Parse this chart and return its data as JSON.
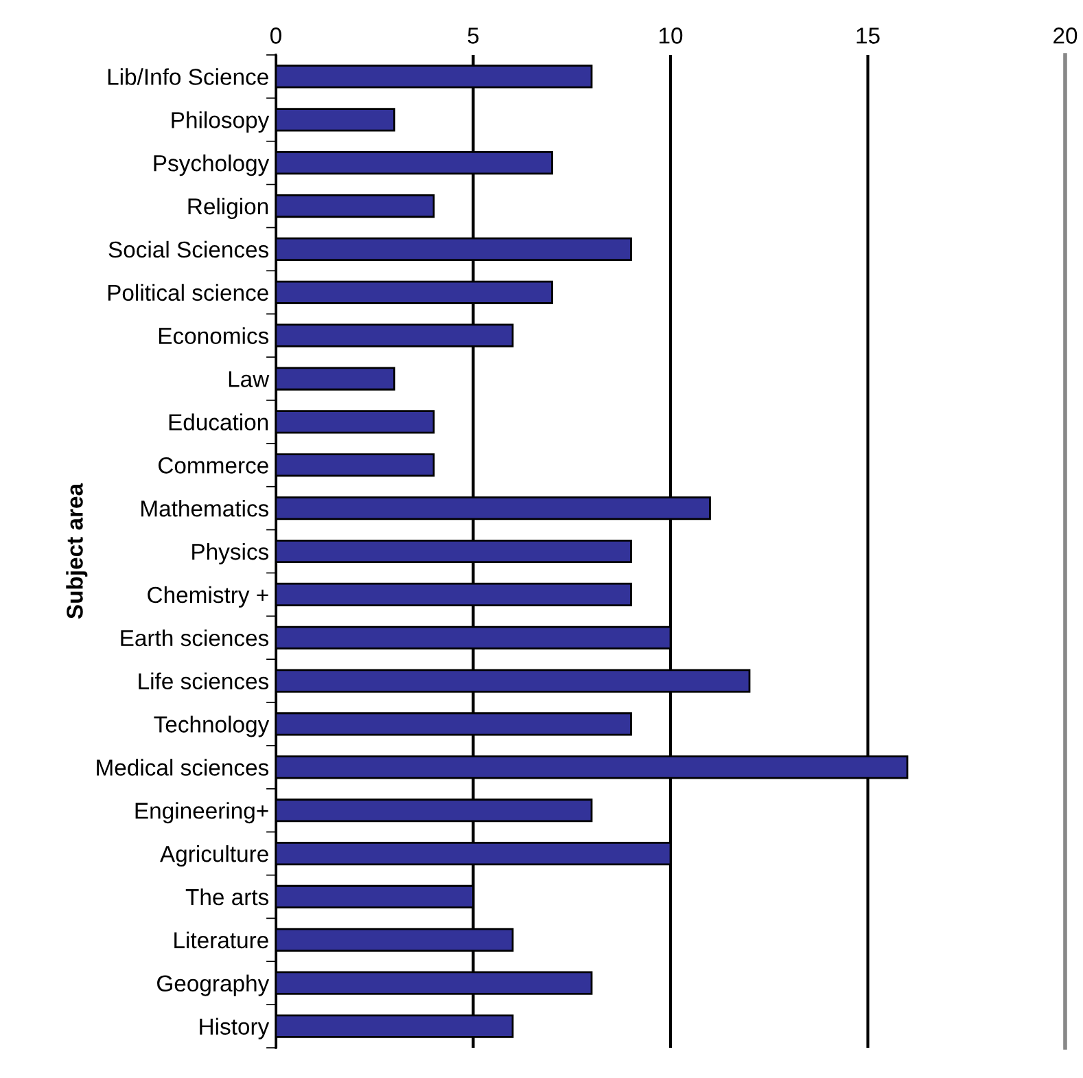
{
  "chart_data": {
    "type": "bar",
    "orientation": "horizontal",
    "ylabel": "Subject area",
    "categories": [
      "Lib/Info Science",
      "Philosopy",
      "Psychology",
      "Religion",
      "Social Sciences",
      "Political science",
      "Economics",
      "Law",
      "Education",
      "Commerce",
      "Mathematics",
      "Physics",
      "Chemistry +",
      "Earth sciences",
      "Life sciences",
      "Technology",
      "Medical sciences",
      "Engineering+",
      "Agriculture",
      "The arts",
      "Literature",
      "Geography",
      "History"
    ],
    "values": [
      8,
      3,
      7,
      4,
      9,
      7,
      6,
      3,
      4,
      4,
      11,
      9,
      9,
      10,
      12,
      9,
      16,
      8,
      10,
      5,
      6,
      8,
      6
    ],
    "color": "#333399",
    "xlim": [
      0,
      20
    ],
    "xticks": [
      0,
      5,
      10,
      15,
      20
    ],
    "grid": "x"
  }
}
